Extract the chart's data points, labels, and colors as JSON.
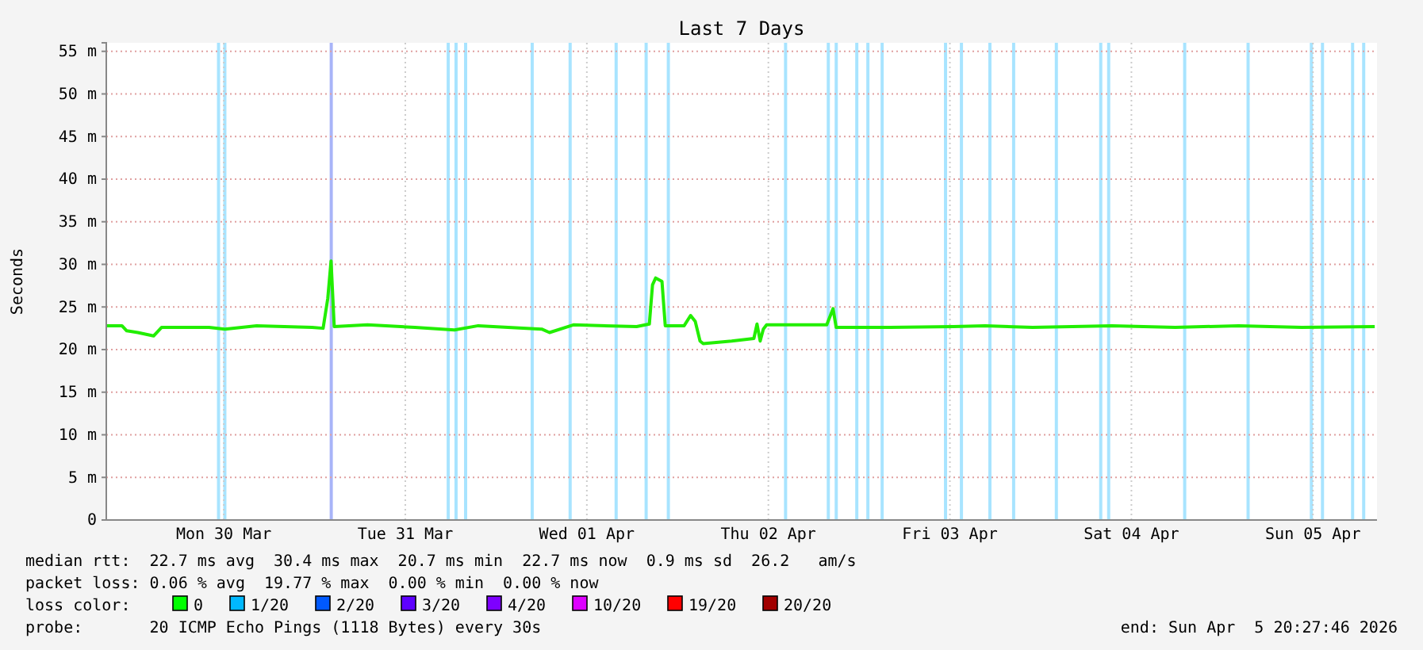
{
  "chart_data": {
    "type": "line",
    "title": "Last 7 Days",
    "ylabel": "Seconds",
    "xlim": [
      "2026-03-29T20:28",
      "2026-04-05T20:28"
    ],
    "xticks": [
      {
        "value": "2026-03-30T12:00",
        "label": "Mon 30 Mar"
      },
      {
        "value": "2026-03-31T12:00",
        "label": "Tue 31 Mar"
      },
      {
        "value": "2026-04-01T12:00",
        "label": "Wed 01 Apr"
      },
      {
        "value": "2026-04-02T12:00",
        "label": "Thu 02 Apr"
      },
      {
        "value": "2026-04-03T12:00",
        "label": "Fri 03 Apr"
      },
      {
        "value": "2026-04-04T12:00",
        "label": "Sat 04 Apr"
      },
      {
        "value": "2026-04-05T12:00",
        "label": "Sun 05 Apr"
      }
    ],
    "ylim": [
      0,
      56
    ],
    "yticks": [
      {
        "value": 0,
        "label": "0"
      },
      {
        "value": 5,
        "label": "5 m"
      },
      {
        "value": 10,
        "label": "10 m"
      },
      {
        "value": 15,
        "label": "15 m"
      },
      {
        "value": 20,
        "label": "20 m"
      },
      {
        "value": 25,
        "label": "25 m"
      },
      {
        "value": 30,
        "label": "30 m"
      },
      {
        "value": 35,
        "label": "35 m"
      },
      {
        "value": 40,
        "label": "40 m"
      },
      {
        "value": 45,
        "label": "45 m"
      },
      {
        "value": 50,
        "label": "50 m"
      },
      {
        "value": 55,
        "label": "55 m"
      }
    ],
    "grid": true,
    "series": [
      {
        "color": "#22ee00",
        "x": [
          "2026-03-29T20:30",
          "2026-03-29T22:32",
          "2026-03-29T23:10",
          "2026-03-30T00:38",
          "2026-03-30T02:43",
          "2026-03-30T03:46",
          "2026-03-30T10:03",
          "2026-03-30T12:09",
          "2026-03-30T16:20",
          "2026-03-30T23:40",
          "2026-03-31T01:08",
          "2026-03-31T01:45",
          "2026-03-31T02:11",
          "2026-03-31T02:36",
          "2026-03-31T07:00",
          "2026-03-31T13:16",
          "2026-03-31T18:30",
          "2026-03-31T21:39",
          "2026-04-01T06:02",
          "2026-04-01T07:04",
          "2026-04-01T10:13",
          "2026-04-01T18:35",
          "2026-04-01T20:16",
          "2026-04-01T20:41",
          "2026-04-01T21:06",
          "2026-04-01T21:56",
          "2026-04-01T22:22",
          "2026-04-02T00:52",
          "2026-04-02T01:43",
          "2026-04-02T02:20",
          "2026-04-02T02:58",
          "2026-04-02T03:23",
          "2026-04-02T07:09",
          "2026-04-02T10:05",
          "2026-04-02T10:30",
          "2026-04-02T10:55",
          "2026-04-02T11:20",
          "2026-04-02T11:46",
          "2026-04-02T19:43",
          "2026-04-02T20:33",
          "2026-04-02T20:58",
          "2026-04-03T04:05",
          "2026-04-03T12:28",
          "2026-04-03T16:40",
          "2026-04-03T22:56",
          "2026-04-04T09:25",
          "2026-04-04T17:47",
          "2026-04-05T02:10",
          "2026-04-05T10:32",
          "2026-04-05T20:10"
        ],
        "values": [
          22.8,
          22.8,
          22.2,
          22.0,
          21.6,
          22.6,
          22.6,
          22.4,
          22.8,
          22.6,
          22.5,
          26.0,
          30.4,
          22.7,
          22.9,
          22.6,
          22.3,
          22.8,
          22.4,
          22.0,
          22.9,
          22.7,
          23.0,
          27.6,
          28.4,
          28.0,
          22.8,
          22.8,
          24.0,
          23.3,
          21.0,
          20.7,
          21.0,
          21.3,
          23.0,
          21.0,
          22.4,
          22.9,
          22.9,
          24.8,
          22.6,
          22.6,
          22.7,
          22.8,
          22.6,
          22.8,
          22.6,
          22.8,
          22.6,
          22.7
        ]
      }
    ],
    "bands": [
      {
        "axis": "x",
        "from": "2026-03-30T11:06",
        "to": "2026-03-30T11:31",
        "color": "#a8e4ff"
      },
      {
        "axis": "x",
        "from": "2026-03-30T11:56",
        "to": "2026-03-30T12:21",
        "color": "#a8e4ff"
      },
      {
        "axis": "x",
        "from": "2026-03-31T02:00",
        "to": "2026-03-31T02:25",
        "color": "#a8b4f8"
      },
      {
        "axis": "x",
        "from": "2026-03-31T17:28",
        "to": "2026-03-31T17:53",
        "color": "#a8e4ff"
      },
      {
        "axis": "x",
        "from": "2026-03-31T18:30",
        "to": "2026-03-31T18:55",
        "color": "#a8e4ff"
      },
      {
        "axis": "x",
        "from": "2026-03-31T19:46",
        "to": "2026-03-31T20:11",
        "color": "#a8e4ff"
      },
      {
        "axis": "x",
        "from": "2026-04-01T04:34",
        "to": "2026-04-01T04:59",
        "color": "#a8e4ff"
      },
      {
        "axis": "x",
        "from": "2026-04-01T09:35",
        "to": "2026-04-01T10:00",
        "color": "#a8e4ff"
      },
      {
        "axis": "x",
        "from": "2026-04-01T15:40",
        "to": "2026-04-01T16:05",
        "color": "#a8e4ff"
      },
      {
        "axis": "x",
        "from": "2026-04-01T19:38",
        "to": "2026-04-01T20:03",
        "color": "#a8e4ff"
      },
      {
        "axis": "x",
        "from": "2026-04-01T22:34",
        "to": "2026-04-01T22:59",
        "color": "#a8e4ff"
      },
      {
        "axis": "x",
        "from": "2026-04-02T14:04",
        "to": "2026-04-02T14:29",
        "color": "#a8e4ff"
      },
      {
        "axis": "x",
        "from": "2026-04-02T19:43",
        "to": "2026-04-02T20:08",
        "color": "#a8e4ff"
      },
      {
        "axis": "x",
        "from": "2026-04-02T20:46",
        "to": "2026-04-02T21:11",
        "color": "#a8e4ff"
      },
      {
        "axis": "x",
        "from": "2026-04-02T23:29",
        "to": "2026-04-02T23:54",
        "color": "#a8e4ff"
      },
      {
        "axis": "x",
        "from": "2026-04-03T00:57",
        "to": "2026-04-03T01:22",
        "color": "#a8e4ff"
      },
      {
        "axis": "x",
        "from": "2026-04-03T02:50",
        "to": "2026-04-03T03:15",
        "color": "#a8e4ff"
      },
      {
        "axis": "x",
        "from": "2026-04-03T11:13",
        "to": "2026-04-03T11:38",
        "color": "#a8e4ff"
      },
      {
        "axis": "x",
        "from": "2026-04-03T13:19",
        "to": "2026-04-03T13:44",
        "color": "#a8e4ff"
      },
      {
        "axis": "x",
        "from": "2026-04-03T17:05",
        "to": "2026-04-03T17:30",
        "color": "#a8e4ff"
      },
      {
        "axis": "x",
        "from": "2026-04-03T20:13",
        "to": "2026-04-03T20:38",
        "color": "#a8e4ff"
      },
      {
        "axis": "x",
        "from": "2026-04-04T01:52",
        "to": "2026-04-04T02:17",
        "color": "#a8e4ff"
      },
      {
        "axis": "x",
        "from": "2026-04-04T07:44",
        "to": "2026-04-04T08:09",
        "color": "#a8e4ff"
      },
      {
        "axis": "x",
        "from": "2026-04-04T08:47",
        "to": "2026-04-04T09:12",
        "color": "#a8e4ff"
      },
      {
        "axis": "x",
        "from": "2026-04-04T18:50",
        "to": "2026-04-04T19:15",
        "color": "#a8e4ff"
      },
      {
        "axis": "x",
        "from": "2026-04-05T03:13",
        "to": "2026-04-05T03:38",
        "color": "#a8e4ff"
      },
      {
        "axis": "x",
        "from": "2026-04-05T11:35",
        "to": "2026-04-05T12:00",
        "color": "#a8e4ff"
      },
      {
        "axis": "x",
        "from": "2026-04-05T13:03",
        "to": "2026-04-05T13:28",
        "color": "#a8e4ff"
      },
      {
        "axis": "x",
        "from": "2026-04-05T17:02",
        "to": "2026-04-05T17:27",
        "color": "#a8e4ff"
      },
      {
        "axis": "x",
        "from": "2026-04-05T18:30",
        "to": "2026-04-05T18:55",
        "color": "#a8e4ff"
      }
    ],
    "annotations": [
      "median rtt:  22.7 ms avg  30.4 ms max  20.7 ms min  22.7 ms now  0.9 ms sd  26.2   am/s",
      "packet loss: 0.06 % avg  19.77 % max  0.00 % min  0.00 % now",
      "loss color:",
      "0",
      "1/20",
      "2/20",
      "3/20",
      "4/20",
      "10/20",
      "19/20",
      "20/20",
      "probe:       20 ICMP Echo Pings (1118 Bytes) every 30s",
      "end: Sun Apr  5 20:27:46 2026"
    ]
  }
}
